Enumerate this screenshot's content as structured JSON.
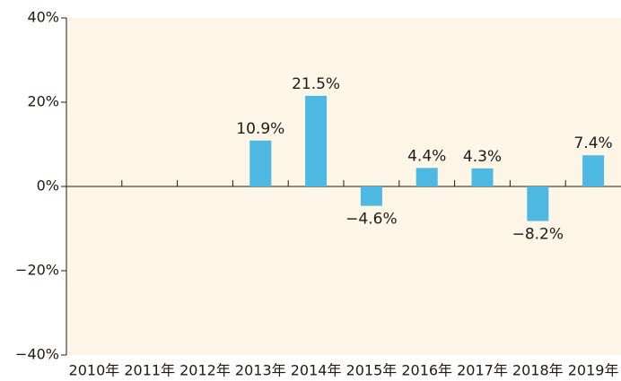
{
  "chart_data": {
    "type": "bar",
    "categories": [
      "2010年",
      "2011年",
      "2012年",
      "2013年",
      "2014年",
      "2015年",
      "2016年",
      "2017年",
      "2018年",
      "2019年"
    ],
    "values": [
      null,
      null,
      null,
      10.9,
      21.5,
      -4.6,
      4.4,
      4.3,
      -8.2,
      7.4
    ],
    "value_labels": [
      null,
      null,
      null,
      "10.9%",
      "21.5%",
      "−4.6%",
      "4.4%",
      "4.3%",
      "−8.2%",
      "7.4%"
    ],
    "color": "#4db8e2",
    "ylim": [
      -40,
      40
    ],
    "yticks": [
      {
        "value": -40,
        "label": "−40%"
      },
      {
        "value": -20,
        "label": "−20%"
      },
      {
        "value": 0,
        "label": "0%"
      },
      {
        "value": 20,
        "label": "20%"
      },
      {
        "value": 40,
        "label": "40%"
      }
    ]
  }
}
